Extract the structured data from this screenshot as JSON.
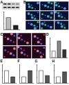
{
  "panels": {
    "labels": [
      "A",
      "B",
      "C",
      "D",
      "E",
      "F",
      "G",
      "H"
    ]
  },
  "chart_data": [
    {
      "type": "bar",
      "categories": [
        null,
        null
      ],
      "values": [
        1,
        0.35
      ],
      "colors": [
        "#bbbbbb",
        "#222222"
      ],
      "ylim": [
        0,
        1.5
      ],
      "yticks": [
        0,
        0.5,
        1,
        1.5
      ],
      "tick_labels": false
    },
    {
      "type": "bar",
      "categories": [
        null,
        null,
        null
      ],
      "values": [
        1,
        2.5,
        1.2
      ],
      "colors": [
        "#ffffff",
        "#888888",
        "#333333"
      ],
      "ylim": [
        0,
        3
      ],
      "yticks": [
        0,
        1,
        2,
        3
      ],
      "tick_labels": false
    },
    {
      "type": "bar",
      "categories": [
        null,
        null
      ],
      "values": [
        1,
        0.5
      ],
      "colors": [
        "#ffffff",
        "#555555"
      ],
      "ylim": [
        0,
        1.5
      ],
      "yticks": [
        0,
        0.5,
        1,
        1.5
      ],
      "tick_labels": false
    },
    {
      "type": "bar",
      "categories": [
        null,
        null
      ],
      "values": [
        1,
        2
      ],
      "colors": [
        "#ffffff",
        "#555555"
      ],
      "ylim": [
        0,
        3
      ],
      "yticks": [
        0,
        1,
        2,
        3
      ],
      "tick_labels": false
    },
    {
      "type": "bar",
      "categories": [
        null,
        null
      ],
      "values": [
        1,
        0.6
      ],
      "colors": [
        "#ffffff",
        "#555555"
      ],
      "ylim": [
        0,
        1.5
      ],
      "yticks": [
        0,
        0.5,
        1,
        1.5
      ],
      "tick_labels": false
    },
    {
      "type": "bar",
      "categories": [
        null,
        null
      ],
      "values": [
        1,
        1.8
      ],
      "colors": [
        "#ffffff",
        "#555555"
      ],
      "ylim": [
        0,
        3
      ],
      "yticks": [
        0,
        1,
        2,
        3
      ],
      "tick_labels": false
    }
  ]
}
